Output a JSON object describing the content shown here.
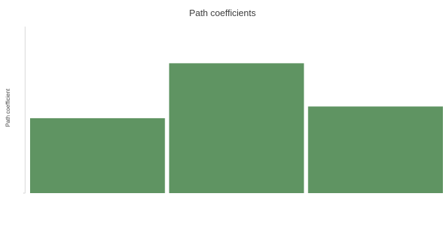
{
  "chart_data": {
    "type": "bar",
    "title": "Path coefficients",
    "ylabel": "Path coefficient",
    "xlabel": "",
    "categories": [
      "",
      "",
      ""
    ],
    "values": [
      0.45,
      0.78,
      0.52
    ],
    "ylim": [
      0,
      1.0
    ],
    "grid": false,
    "legend": "none",
    "bar_color": "#5f9462"
  }
}
